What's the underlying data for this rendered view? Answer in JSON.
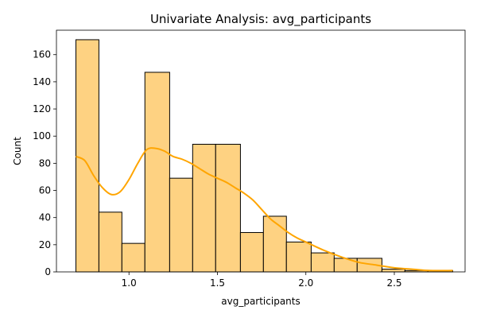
{
  "chart_data": {
    "type": "bar",
    "subtype": "histogram",
    "title": "Univariate Analysis: avg_participants",
    "xlabel": "avg_participants",
    "ylabel": "Count",
    "xlim": [
      0.59,
      2.9
    ],
    "ylim": [
      0,
      178
    ],
    "x_ticks": [
      1.0,
      1.5,
      2.0,
      2.5
    ],
    "y_ticks": [
      0,
      20,
      40,
      60,
      80,
      100,
      120,
      140,
      160
    ],
    "bins": [
      {
        "start": 0.7,
        "end": 0.83,
        "count": 171
      },
      {
        "start": 0.83,
        "end": 0.96,
        "count": 44
      },
      {
        "start": 0.96,
        "end": 1.09,
        "count": 21
      },
      {
        "start": 1.09,
        "end": 1.23,
        "count": 147
      },
      {
        "start": 1.23,
        "end": 1.36,
        "count": 69
      },
      {
        "start": 1.36,
        "end": 1.49,
        "count": 94
      },
      {
        "start": 1.49,
        "end": 1.63,
        "count": 94
      },
      {
        "start": 1.63,
        "end": 1.76,
        "count": 29
      },
      {
        "start": 1.76,
        "end": 1.89,
        "count": 41
      },
      {
        "start": 1.89,
        "end": 2.03,
        "count": 22
      },
      {
        "start": 2.03,
        "end": 2.16,
        "count": 14
      },
      {
        "start": 2.16,
        "end": 2.29,
        "count": 10
      },
      {
        "start": 2.29,
        "end": 2.43,
        "count": 10
      },
      {
        "start": 2.43,
        "end": 2.56,
        "count": 2
      },
      {
        "start": 2.56,
        "end": 2.69,
        "count": 1
      },
      {
        "start": 2.69,
        "end": 2.83,
        "count": 1
      }
    ],
    "kde": {
      "x": [
        0.7,
        0.75,
        0.8,
        0.85,
        0.9,
        0.95,
        1.0,
        1.05,
        1.1,
        1.15,
        1.2,
        1.25,
        1.3,
        1.35,
        1.4,
        1.45,
        1.5,
        1.55,
        1.6,
        1.65,
        1.7,
        1.75,
        1.8,
        1.85,
        1.9,
        1.95,
        2.0,
        2.1,
        2.2,
        2.3,
        2.4,
        2.5,
        2.6,
        2.7,
        2.83
      ],
      "y": [
        85,
        82,
        71,
        62,
        57,
        59,
        68,
        80,
        90,
        91,
        89,
        85,
        83,
        80,
        76,
        72,
        69,
        66,
        62,
        58,
        53,
        46,
        39,
        34,
        29,
        25,
        22,
        16,
        11,
        7,
        5,
        3,
        2,
        1,
        1
      ]
    },
    "bar_color": "#fed282",
    "bar_edge_color": "#000000",
    "kde_color": "#ffa500",
    "grid": false,
    "legend": "none"
  }
}
